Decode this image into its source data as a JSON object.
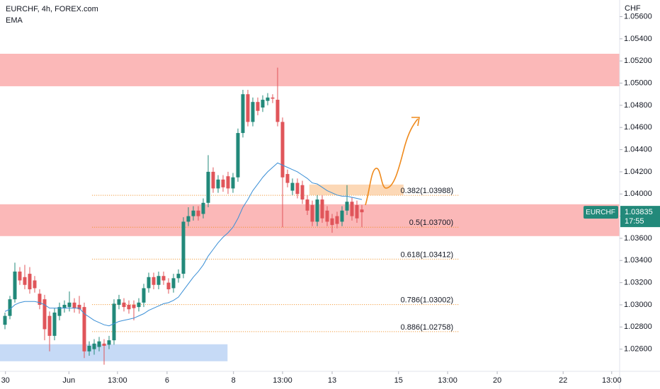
{
  "chart_data": {
    "type": "candlestick",
    "title": "EURCHF, 4h, FOREX.com",
    "indicator": "EMA",
    "currency": "CHF",
    "up_color": "#22897a",
    "down_color": "#e0555a",
    "ema_color": "#3a8fd6",
    "grid": false,
    "xlim": [
      0,
      125
    ],
    "ylim": [
      1.024,
      1.0575
    ],
    "xticks": [
      {
        "value": 1.1,
        "label": "30"
      },
      {
        "value": 13.9,
        "label": "Jun"
      },
      {
        "value": 23.7,
        "label": "13:00"
      },
      {
        "value": 33.7,
        "label": "6"
      },
      {
        "value": 47.1,
        "label": "8"
      },
      {
        "value": 57,
        "label": "13:00"
      },
      {
        "value": 67,
        "label": "13"
      },
      {
        "value": 80.4,
        "label": "15"
      },
      {
        "value": 90.3,
        "label": "13:00"
      },
      {
        "value": 100.3,
        "label": "20"
      },
      {
        "value": 113.6,
        "label": "22"
      },
      {
        "value": 123.4,
        "label": "13:00"
      }
    ],
    "yticks": [
      {
        "value": 1.026,
        "label": "1.02600"
      },
      {
        "value": 1.028,
        "label": "1.02800"
      },
      {
        "value": 1.03,
        "label": "1.03000"
      },
      {
        "value": 1.032,
        "label": "1.03200"
      },
      {
        "value": 1.034,
        "label": "1.03400"
      },
      {
        "value": 1.036,
        "label": "1.03600"
      },
      {
        "value": 1.038,
        "label": "1.03800"
      },
      {
        "value": 1.04,
        "label": "1.04000"
      },
      {
        "value": 1.042,
        "label": "1.04200"
      },
      {
        "value": 1.044,
        "label": "1.04400"
      },
      {
        "value": 1.046,
        "label": "1.04600"
      },
      {
        "value": 1.048,
        "label": "1.04800"
      },
      {
        "value": 1.05,
        "label": "1.05000"
      },
      {
        "value": 1.052,
        "label": "1.05200"
      },
      {
        "value": 1.054,
        "label": "1.05400"
      },
      {
        "value": 1.056,
        "label": "1.05600"
      }
    ],
    "x": [
      1,
      2,
      3,
      4,
      5,
      6,
      7,
      8,
      9,
      10,
      11,
      12,
      13,
      14,
      15,
      16,
      17,
      18,
      19,
      20,
      21,
      22,
      23,
      24,
      25,
      26,
      27,
      28,
      29,
      30,
      31,
      32,
      33,
      34,
      35,
      36,
      37,
      38,
      39,
      40,
      41,
      42,
      43,
      44,
      45,
      46,
      47,
      48,
      49,
      50,
      51,
      52,
      53,
      54,
      55,
      56,
      57,
      58,
      59,
      60,
      61,
      62,
      63,
      64,
      65,
      66,
      67,
      68,
      69,
      70,
      71,
      72,
      73
    ],
    "open": [
      1.0282,
      1.029,
      1.0305,
      1.033,
      1.0325,
      1.0328,
      1.0322,
      1.031,
      1.0305,
      1.029,
      1.0272,
      1.029,
      1.0297,
      1.0298,
      1.0302,
      1.03,
      1.0298,
      1.0258,
      1.026,
      1.0262,
      1.0265,
      1.0264,
      1.0268,
      1.03,
      1.0302,
      1.03,
      1.03,
      1.0298,
      1.0302,
      1.0315,
      1.0325,
      1.0318,
      1.0326,
      1.032,
      1.0315,
      1.0324,
      1.0328,
      1.0375,
      1.038,
      1.0385,
      1.0382,
      1.0392,
      1.042,
      1.0405,
      1.0413,
      1.0416,
      1.0405,
      1.0415,
      1.0455,
      1.049,
      1.0465,
      1.0483,
      1.0478,
      1.0484,
      1.0487,
      1.0485,
      1.0465,
      1.0418,
      1.0403,
      1.041,
      1.0408,
      1.0395,
      1.039,
      1.0375,
      1.0395,
      1.0385,
      1.0378,
      1.038,
      1.0375,
      1.0385,
      1.0393,
      1.039,
      1.0386
    ],
    "high": [
      1.0293,
      1.0308,
      1.0338,
      1.0334,
      1.0336,
      1.0334,
      1.0326,
      1.0314,
      1.0309,
      1.0294,
      1.0297,
      1.0302,
      1.0304,
      1.0312,
      1.0306,
      1.0308,
      1.0302,
      1.0267,
      1.0269,
      1.0271,
      1.0269,
      1.0272,
      1.0305,
      1.0309,
      1.0306,
      1.0304,
      1.0304,
      1.0306,
      1.0319,
      1.0329,
      1.0329,
      1.033,
      1.033,
      1.0324,
      1.0328,
      1.0332,
      1.0379,
      1.0388,
      1.0389,
      1.0389,
      1.0396,
      1.0435,
      1.0424,
      1.0417,
      1.0417,
      1.042,
      1.0419,
      1.0459,
      1.0494,
      1.0494,
      1.0487,
      1.0487,
      1.0489,
      1.0491,
      1.049,
      1.0514,
      1.0469,
      1.0422,
      1.0414,
      1.0414,
      1.0412,
      1.0399,
      1.0394,
      1.0399,
      1.0399,
      1.0389,
      1.0382,
      1.0384,
      1.0389,
      1.0408,
      1.0397,
      1.0394,
      1.039
    ],
    "low": [
      1.0278,
      1.0287,
      1.0302,
      1.0318,
      1.0314,
      1.031,
      1.0311,
      1.0296,
      1.0268,
      1.0258,
      1.0268,
      1.0286,
      1.0293,
      1.0294,
      1.0293,
      1.0292,
      1.0252,
      1.0254,
      1.0255,
      1.0258,
      1.0246,
      1.026,
      1.0264,
      1.0296,
      1.0294,
      1.0292,
      1.0286,
      1.0294,
      1.0298,
      1.0311,
      1.0314,
      1.0314,
      1.0318,
      1.031,
      1.0311,
      1.032,
      1.0324,
      1.0371,
      1.0376,
      1.0376,
      1.0378,
      1.0388,
      1.0401,
      1.0401,
      1.0402,
      1.04,
      1.0401,
      1.0411,
      1.0451,
      1.0461,
      1.0461,
      1.0471,
      1.0474,
      1.048,
      1.0482,
      1.0461,
      1.037,
      1.0406,
      1.0399,
      1.0396,
      1.0391,
      1.0381,
      1.0371,
      1.0371,
      1.0374,
      1.0371,
      1.0365,
      1.0369,
      1.0371,
      1.0381,
      1.0376,
      1.0374,
      1.037
    ],
    "close": [
      1.029,
      1.0305,
      1.033,
      1.0322,
      1.0318,
      1.0314,
      1.0315,
      1.03,
      1.0278,
      1.0272,
      1.0293,
      1.0298,
      1.03,
      1.0302,
      1.0297,
      1.0296,
      1.0258,
      1.0263,
      1.0265,
      1.0267,
      1.0263,
      1.0268,
      1.0301,
      1.0305,
      1.0298,
      1.0296,
      1.0297,
      1.0302,
      1.0315,
      1.0325,
      1.0318,
      1.0326,
      1.0322,
      1.0314,
      1.0324,
      1.0328,
      1.0375,
      1.038,
      1.0385,
      1.038,
      1.0392,
      1.042,
      1.0405,
      1.0413,
      1.0406,
      1.0405,
      1.0415,
      1.0455,
      1.049,
      1.0465,
      1.0483,
      1.0475,
      1.0485,
      1.0487,
      1.0486,
      1.0465,
      1.0415,
      1.041,
      1.041,
      1.04,
      1.0395,
      1.0385,
      1.0375,
      1.0395,
      1.0378,
      1.0375,
      1.0372,
      1.0373,
      1.0385,
      1.0393,
      1.038,
      1.0378,
      1.03835
    ],
    "ema": [
      1.0294,
      1.0296,
      1.03,
      1.0302,
      1.0303,
      1.0303,
      1.0303,
      1.0302,
      1.03,
      1.0297,
      1.0297,
      1.0297,
      1.0297,
      1.0297,
      1.0297,
      1.0297,
      1.0292,
      1.0289,
      1.0286,
      1.0284,
      1.0282,
      1.0281,
      1.0283,
      1.0285,
      1.0286,
      1.0287,
      1.0288,
      1.029,
      1.0292,
      1.0295,
      1.0297,
      1.0299,
      1.0301,
      1.0302,
      1.0304,
      1.0307,
      1.0313,
      1.0319,
      1.0325,
      1.033,
      1.0336,
      1.0344,
      1.035,
      1.0356,
      1.0361,
      1.0365,
      1.037,
      1.0378,
      1.0388,
      1.0395,
      1.0403,
      1.0409,
      1.0415,
      1.042,
      1.0424,
      1.0428,
      1.0426,
      1.0424,
      1.0422,
      1.042,
      1.0417,
      1.0414,
      1.041,
      1.0409,
      1.0406,
      1.0403,
      1.0401,
      1.0399,
      1.0398,
      1.0398,
      1.0397,
      1.0396,
      1.0395
    ],
    "zones": [
      {
        "color": "#fbb8b8",
        "y": [
          1.04972,
          1.05265
        ],
        "x": [
          0,
          125
        ]
      },
      {
        "color": "#fbb8b8",
        "y": [
          1.0362,
          1.03907
        ],
        "x": [
          0,
          125
        ]
      },
      {
        "color": "#c6daf6",
        "y": [
          1.02491,
          1.02644
        ],
        "x": [
          0,
          45.9
        ]
      },
      {
        "color": "#fcd8b6",
        "y": [
          1.0399,
          1.04085
        ],
        "x": [
          62.4,
          81.4
        ]
      }
    ],
    "fib_color": "#ef8a1c",
    "fib_x": [
      18.6,
      92.6
    ],
    "fib_levels": [
      {
        "label": "0.382(1.03988)",
        "value": 1.03988
      },
      {
        "label": "0.5(1.03700)",
        "value": 1.037
      },
      {
        "label": "0.618(1.03412)",
        "value": 1.03412
      },
      {
        "label": "0.786(1.03002)",
        "value": 1.03002
      },
      {
        "label": "0.886(1.02758)",
        "value": 1.02758
      }
    ],
    "price_tag": {
      "symbol": "EURCHF",
      "price": 1.03835,
      "countdown": "17:55"
    }
  }
}
